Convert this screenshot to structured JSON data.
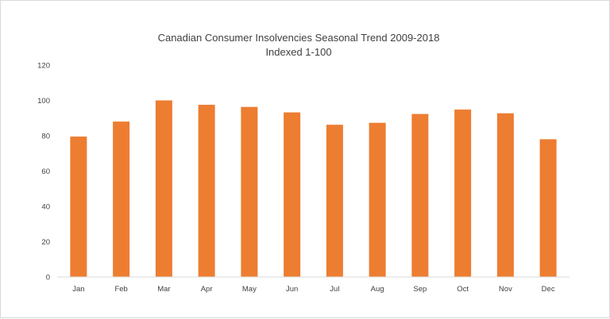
{
  "chart_data": {
    "type": "bar",
    "title": "Canadian Consumer Insolvencies Seasonal Trend 2009-2018",
    "subtitle": "Indexed 1-100",
    "categories": [
      "Jan",
      "Feb",
      "Mar",
      "Apr",
      "May",
      "Jun",
      "Jul",
      "Aug",
      "Sep",
      "Oct",
      "Nov",
      "Dec"
    ],
    "values": [
      79.5,
      88,
      100,
      97.5,
      96.3,
      93.2,
      86.2,
      87.3,
      92.3,
      94.8,
      92.7,
      78
    ],
    "ylim": [
      0,
      120
    ],
    "yticks": [
      0,
      20,
      40,
      60,
      80,
      100,
      120
    ],
    "xlabel": "",
    "ylabel": "",
    "grid": false,
    "legend": "none",
    "bar_color": "#ED7D31"
  }
}
